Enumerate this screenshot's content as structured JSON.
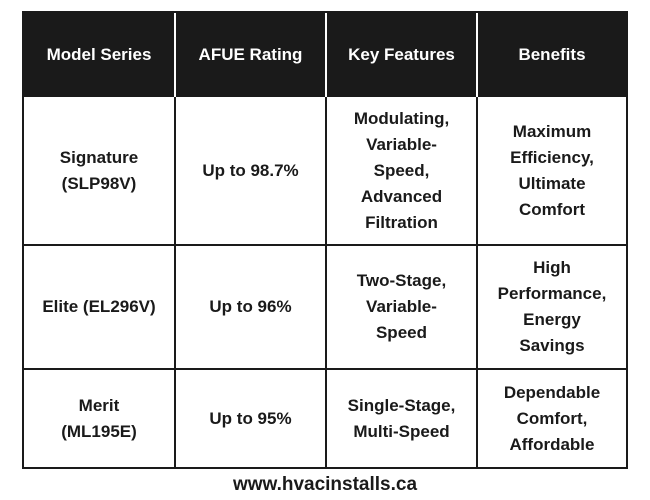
{
  "table": {
    "headers": [
      "Model Series",
      "AFUE Rating",
      "Key Features",
      "Benefits"
    ],
    "rows": [
      {
        "model": "Signature\n(SLP98V)",
        "afue": "Up to 98.7%",
        "features": "Modulating,\nVariable-\nSpeed,\nAdvanced\nFiltration",
        "benefits": "Maximum\nEfficiency,\nUltimate\nComfort"
      },
      {
        "model": "Elite (EL296V)",
        "afue": "Up to 96%",
        "features": "Two-Stage,\nVariable-\nSpeed",
        "benefits": "High\nPerformance,\nEnergy\nSavings"
      },
      {
        "model": "Merit\n(ML195E)",
        "afue": "Up to 95%",
        "features": "Single-Stage,\nMulti-Speed",
        "benefits": "Dependable\nComfort,\nAffordable"
      }
    ]
  },
  "footer": {
    "website": "www.hvacinstalls.ca"
  }
}
